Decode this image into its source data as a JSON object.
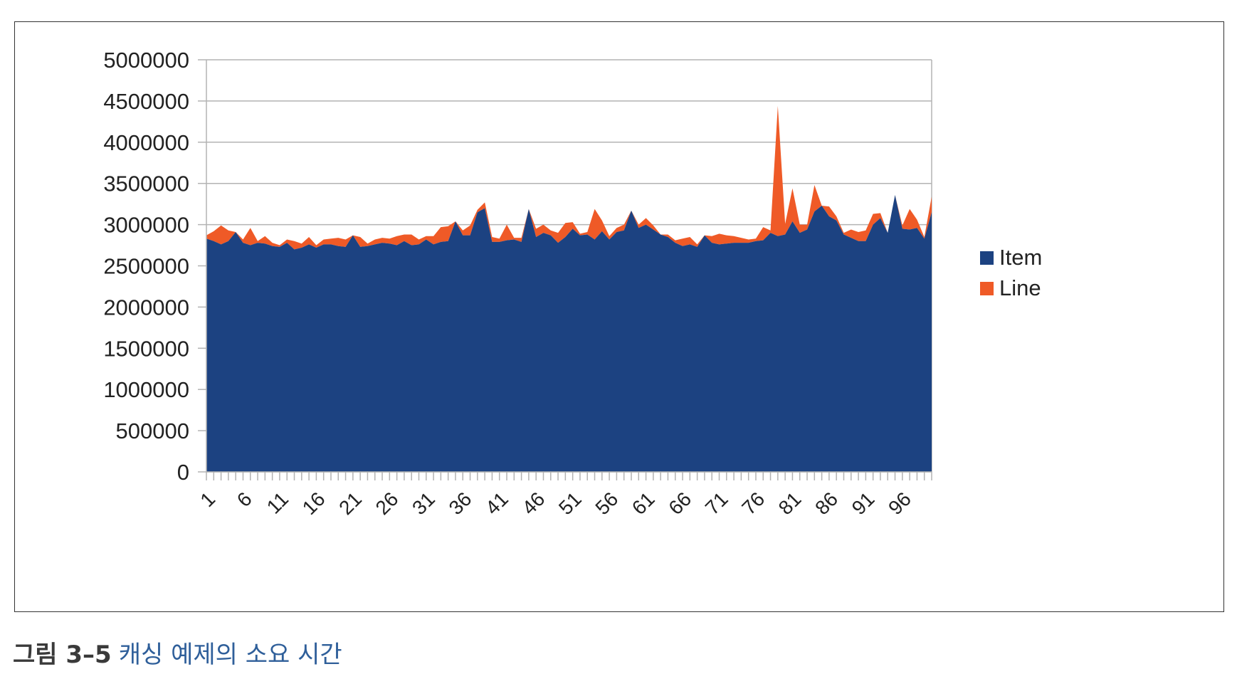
{
  "caption": {
    "label": "그림 3–5",
    "text": "캐싱 예제의 소요 시간"
  },
  "chart_data": {
    "type": "area",
    "stacked": true,
    "ylim": [
      0,
      5000000
    ],
    "yticks": [
      0,
      500000,
      1000000,
      1500000,
      2000000,
      2500000,
      3000000,
      3500000,
      4000000,
      4500000,
      5000000
    ],
    "x": [
      1,
      2,
      3,
      4,
      5,
      6,
      7,
      8,
      9,
      10,
      11,
      12,
      13,
      14,
      15,
      16,
      17,
      18,
      19,
      20,
      21,
      22,
      23,
      24,
      25,
      26,
      27,
      28,
      29,
      30,
      31,
      32,
      33,
      34,
      35,
      36,
      37,
      38,
      39,
      40,
      41,
      42,
      43,
      44,
      45,
      46,
      47,
      48,
      49,
      50,
      51,
      52,
      53,
      54,
      55,
      56,
      57,
      58,
      59,
      60,
      61,
      62,
      63,
      64,
      65,
      66,
      67,
      68,
      69,
      70,
      71,
      72,
      73,
      74,
      75,
      76,
      77,
      78,
      79,
      80,
      81,
      82,
      83,
      84,
      85,
      86,
      87,
      88,
      89,
      90,
      91,
      92,
      93,
      94,
      95,
      96,
      97,
      98,
      99,
      100
    ],
    "xtick_labels": [
      "1",
      "6",
      "11",
      "16",
      "21",
      "26",
      "31",
      "36",
      "41",
      "46",
      "51",
      "56",
      "61",
      "66",
      "71",
      "76",
      "81",
      "86",
      "91",
      "96"
    ],
    "legend": {
      "position": "right"
    },
    "grid": true,
    "series": [
      {
        "name": "Item",
        "color": "#1c4281",
        "values": [
          2830000,
          2800000,
          2760000,
          2800000,
          2910000,
          2780000,
          2750000,
          2780000,
          2770000,
          2740000,
          2730000,
          2780000,
          2700000,
          2720000,
          2760000,
          2720000,
          2760000,
          2760000,
          2740000,
          2730000,
          2870000,
          2730000,
          2740000,
          2760000,
          2780000,
          2770000,
          2750000,
          2800000,
          2750000,
          2760000,
          2820000,
          2760000,
          2790000,
          2800000,
          3040000,
          2870000,
          2870000,
          3150000,
          3200000,
          2790000,
          2790000,
          2810000,
          2820000,
          2790000,
          3190000,
          2850000,
          2900000,
          2870000,
          2780000,
          2850000,
          2950000,
          2870000,
          2880000,
          2820000,
          2920000,
          2820000,
          2910000,
          2930000,
          3170000,
          2960000,
          3000000,
          2940000,
          2880000,
          2850000,
          2780000,
          2740000,
          2760000,
          2730000,
          2870000,
          2780000,
          2760000,
          2770000,
          2780000,
          2780000,
          2780000,
          2800000,
          2810000,
          2900000,
          2860000,
          2880000,
          3040000,
          2900000,
          2940000,
          3160000,
          3230000,
          3100000,
          3050000,
          2880000,
          2840000,
          2800000,
          2800000,
          3000000,
          3080000,
          2900000,
          3360000,
          2950000,
          2940000,
          2960000,
          2830000,
          3150000
        ]
      },
      {
        "name": "Line",
        "color": "#ef5a27",
        "values": [
          40000,
          120000,
          230000,
          130000,
          0,
          40000,
          210000,
          20000,
          90000,
          40000,
          20000,
          40000,
          100000,
          50000,
          90000,
          30000,
          60000,
          70000,
          100000,
          90000,
          0,
          120000,
          30000,
          60000,
          60000,
          60000,
          110000,
          80000,
          130000,
          60000,
          40000,
          100000,
          180000,
          180000,
          0,
          60000,
          120000,
          30000,
          70000,
          60000,
          40000,
          190000,
          20000,
          50000,
          0,
          100000,
          100000,
          60000,
          120000,
          170000,
          80000,
          20000,
          30000,
          370000,
          130000,
          40000,
          50000,
          70000,
          0,
          40000,
          80000,
          50000,
          0,
          30000,
          30000,
          90000,
          90000,
          30000,
          0,
          80000,
          130000,
          100000,
          80000,
          60000,
          40000,
          30000,
          160000,
          30000,
          1580000,
          130000,
          400000,
          100000,
          60000,
          320000,
          0,
          120000,
          50000,
          20000,
          100000,
          110000,
          130000,
          130000,
          60000,
          0,
          0,
          40000,
          250000,
          100000,
          20000,
          190000
        ]
      }
    ]
  }
}
